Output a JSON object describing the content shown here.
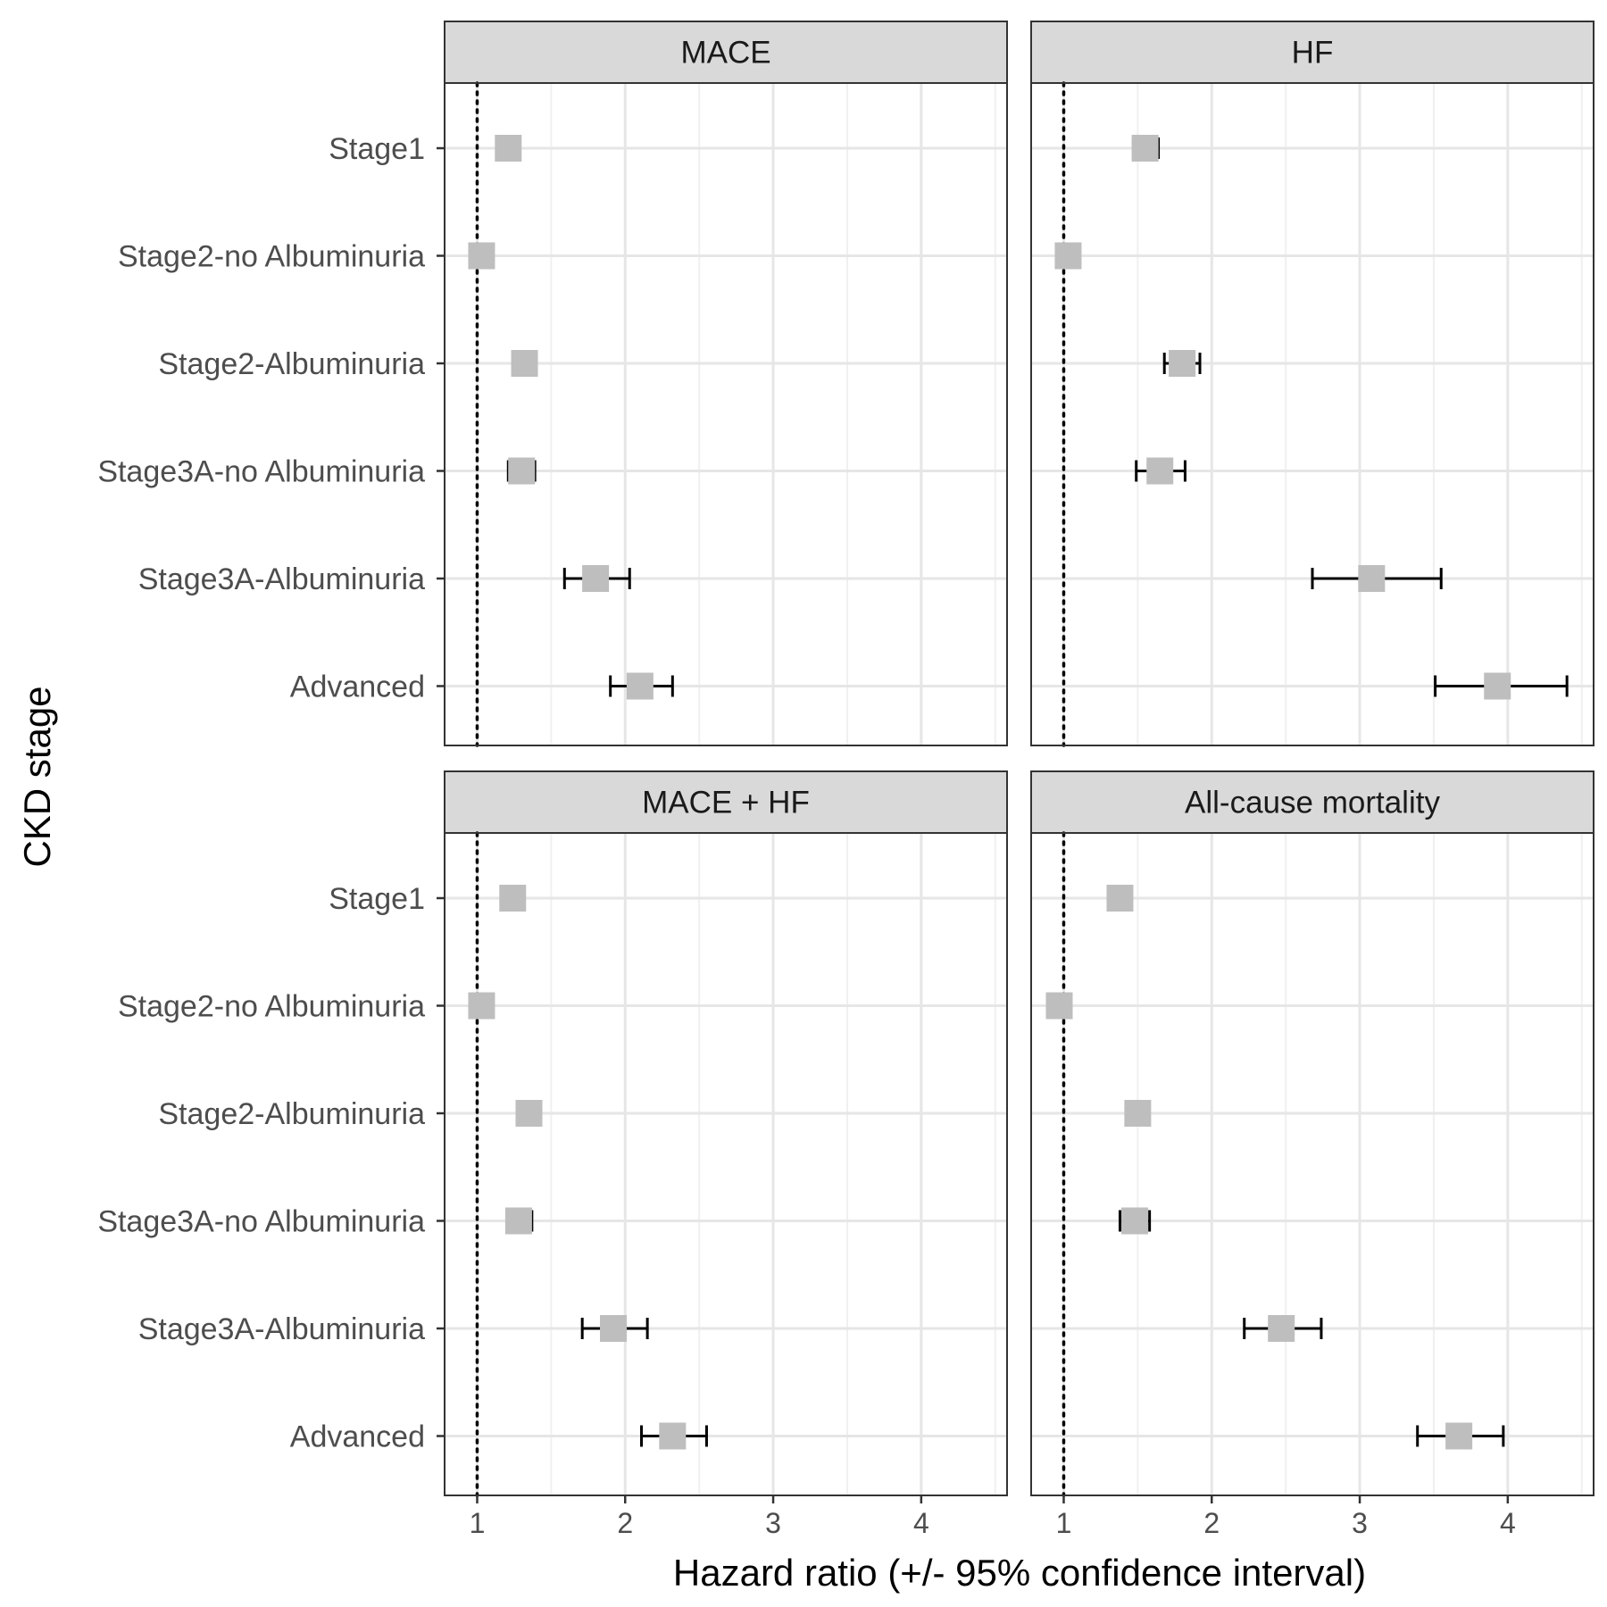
{
  "chart_data": {
    "type": "forest",
    "xlabel": "Hazard ratio (+/- 95% confidence interval)",
    "ylabel": "CKD stage",
    "xlim": [
      0.78,
      4.58
    ],
    "x_ticks": [
      1,
      2,
      3,
      4
    ],
    "reference_line": 1,
    "grid": true,
    "categories": [
      "Stage1",
      "Stage2-no Albuminuria",
      "Stage2-Albuminuria",
      "Stage3A-no Albuminuria",
      "Stage3A-Albuminuria",
      "Advanced"
    ],
    "panels": [
      {
        "title": "MACE",
        "estimates": [
          1.21,
          1.03,
          1.32,
          1.3,
          1.8,
          2.1
        ],
        "lower": [
          1.18,
          1.01,
          1.3,
          1.21,
          1.59,
          1.9
        ],
        "upper": [
          1.24,
          1.05,
          1.34,
          1.39,
          2.03,
          2.32
        ]
      },
      {
        "title": "HF",
        "estimates": [
          1.55,
          1.03,
          1.8,
          1.65,
          3.08,
          3.93
        ],
        "lower": [
          1.47,
          1.01,
          1.68,
          1.49,
          2.68,
          3.51
        ],
        "upper": [
          1.64,
          1.05,
          1.92,
          1.82,
          3.55,
          4.4
        ]
      },
      {
        "title": "MACE + HF",
        "estimates": [
          1.24,
          1.03,
          1.35,
          1.28,
          1.92,
          2.32
        ],
        "lower": [
          1.21,
          1.01,
          1.33,
          1.2,
          1.71,
          2.11
        ],
        "upper": [
          1.27,
          1.05,
          1.37,
          1.37,
          2.15,
          2.55
        ]
      },
      {
        "title": "All-cause mortality",
        "estimates": [
          1.38,
          0.97,
          1.5,
          1.48,
          2.47,
          3.67
        ],
        "lower": [
          1.36,
          0.95,
          1.48,
          1.38,
          2.22,
          3.39
        ],
        "upper": [
          1.4,
          0.99,
          1.52,
          1.58,
          2.74,
          3.97
        ]
      }
    ]
  }
}
